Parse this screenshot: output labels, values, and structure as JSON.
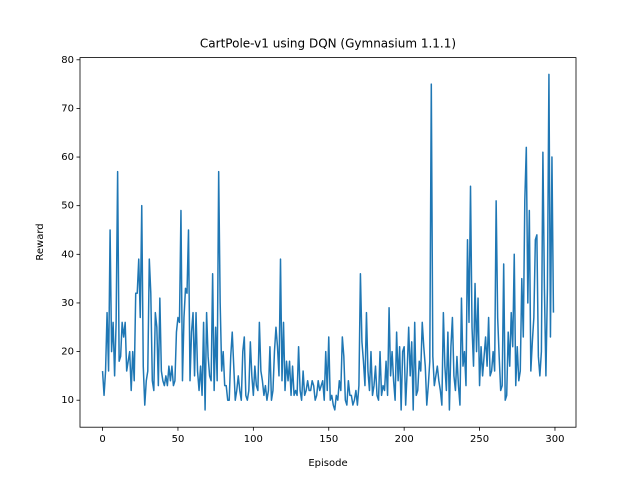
{
  "chart_data": {
    "type": "line",
    "title": "CartPole-v1 using DQN (Gymnasium 1.1.1)",
    "x_label": "Episode",
    "y_label": "Reward",
    "color": "#1f77b4",
    "x": [
      0,
      1,
      2,
      3,
      4,
      5,
      6,
      7,
      8,
      9,
      10,
      11,
      12,
      13,
      14,
      15,
      16,
      17,
      18,
      19,
      20,
      21,
      22,
      23,
      24,
      25,
      26,
      27,
      28,
      29,
      30,
      31,
      32,
      33,
      34,
      35,
      36,
      37,
      38,
      39,
      40,
      41,
      42,
      43,
      44,
      45,
      46,
      47,
      48,
      49,
      50,
      51,
      52,
      53,
      54,
      55,
      56,
      57,
      58,
      59,
      60,
      61,
      62,
      63,
      64,
      65,
      66,
      67,
      68,
      69,
      70,
      71,
      72,
      73,
      74,
      75,
      76,
      77,
      78,
      79,
      80,
      81,
      82,
      83,
      84,
      85,
      86,
      87,
      88,
      89,
      90,
      91,
      92,
      93,
      94,
      95,
      96,
      97,
      98,
      99,
      100,
      101,
      102,
      103,
      104,
      105,
      106,
      107,
      108,
      109,
      110,
      111,
      112,
      113,
      114,
      115,
      116,
      117,
      118,
      119,
      120,
      121,
      122,
      123,
      124,
      125,
      126,
      127,
      128,
      129,
      130,
      131,
      132,
      133,
      134,
      135,
      136,
      137,
      138,
      139,
      140,
      141,
      142,
      143,
      144,
      145,
      146,
      147,
      148,
      149,
      150,
      151,
      152,
      153,
      154,
      155,
      156,
      157,
      158,
      159,
      160,
      161,
      162,
      163,
      164,
      165,
      166,
      167,
      168,
      169,
      170,
      171,
      172,
      173,
      174,
      175,
      176,
      177,
      178,
      179,
      180,
      181,
      182,
      183,
      184,
      185,
      186,
      187,
      188,
      189,
      190,
      191,
      192,
      193,
      194,
      195,
      196,
      197,
      198,
      199,
      200,
      201,
      202,
      203,
      204,
      205,
      206,
      207,
      208,
      209,
      210,
      211,
      212,
      213,
      214,
      215,
      216,
      217,
      218,
      219,
      220,
      221,
      222,
      223,
      224,
      225,
      226,
      227,
      228,
      229,
      230,
      231,
      232,
      233,
      234,
      235,
      236,
      237,
      238,
      239,
      240,
      241,
      242,
      243,
      244,
      245,
      246,
      247,
      248,
      249,
      250,
      251,
      252,
      253,
      254,
      255,
      256,
      257,
      258,
      259,
      260,
      261,
      262,
      263,
      264,
      265,
      266,
      267,
      268,
      269,
      270,
      271,
      272,
      273,
      274,
      275,
      276,
      277,
      278,
      279,
      280,
      281,
      282,
      283,
      284,
      285,
      286,
      287,
      288,
      289,
      290,
      291,
      292,
      293,
      294,
      295,
      296,
      297,
      298,
      299
    ],
    "values": [
      16,
      11,
      16,
      28,
      16,
      45,
      20,
      26,
      15,
      26,
      57,
      18,
      19,
      26,
      23,
      26,
      16,
      18,
      20,
      12,
      20,
      14,
      32,
      32,
      39,
      27,
      50,
      17,
      9,
      14,
      16,
      39,
      32,
      14,
      12,
      28,
      25,
      13,
      31,
      16,
      14,
      13,
      15,
      13,
      17,
      14,
      17,
      13,
      14,
      24,
      27,
      26,
      49,
      14,
      27,
      33,
      32,
      45,
      14,
      24,
      28,
      15,
      28,
      16,
      12,
      17,
      11,
      26,
      8,
      28,
      19,
      15,
      14,
      36,
      12,
      25,
      14,
      57,
      30,
      16,
      20,
      13,
      13,
      10,
      10,
      19,
      24,
      17,
      10,
      12,
      15,
      12,
      10,
      20,
      23,
      11,
      10,
      12,
      22,
      15,
      11,
      17,
      13,
      12,
      26,
      16,
      14,
      11,
      13,
      10,
      12,
      21,
      10,
      12,
      20,
      25,
      21,
      15,
      39,
      14,
      26,
      12,
      18,
      14,
      18,
      11,
      17,
      11,
      12,
      11,
      21,
      12,
      10,
      16,
      11,
      12,
      14,
      12,
      12,
      14,
      13,
      10,
      11,
      14,
      12,
      13,
      14,
      10,
      20,
      12,
      23,
      10,
      11,
      9,
      8,
      11,
      10,
      14,
      12,
      23,
      19,
      10,
      9,
      14,
      11,
      11,
      9,
      10,
      12,
      9,
      13,
      36,
      22,
      18,
      13,
      28,
      16,
      12,
      20,
      11,
      13,
      17,
      11,
      10,
      20,
      11,
      13,
      12,
      18,
      11,
      29,
      15,
      20,
      14,
      10,
      24,
      14,
      21,
      8,
      20,
      21,
      9,
      16,
      25,
      15,
      22,
      8,
      26,
      11,
      12,
      18,
      16,
      26,
      21,
      17,
      9,
      13,
      18,
      75,
      19,
      13,
      15,
      17,
      14,
      12,
      9,
      28,
      17,
      12,
      24,
      8,
      21,
      27,
      15,
      12,
      19,
      13,
      9,
      31,
      17,
      20,
      13,
      43,
      26,
      54,
      25,
      17,
      34,
      20,
      31,
      13,
      21,
      15,
      19,
      23,
      17,
      27,
      15,
      16,
      20,
      16,
      51,
      27,
      19,
      12,
      13,
      38,
      10,
      11,
      24,
      17,
      28,
      21,
      40,
      13,
      21,
      14,
      16,
      35,
      23,
      51,
      62,
      30,
      49,
      16,
      22,
      27,
      43,
      44,
      19,
      15,
      20,
      61,
      33,
      15,
      33,
      77,
      23,
      60,
      28
    ],
    "xlim": [
      -14.95,
      313.95
    ],
    "ylim": [
      4.45,
      80.45
    ],
    "xticks": [
      0,
      50,
      100,
      150,
      200,
      250,
      300
    ],
    "yticks": [
      10,
      20,
      30,
      40,
      50,
      60,
      70,
      80
    ]
  }
}
